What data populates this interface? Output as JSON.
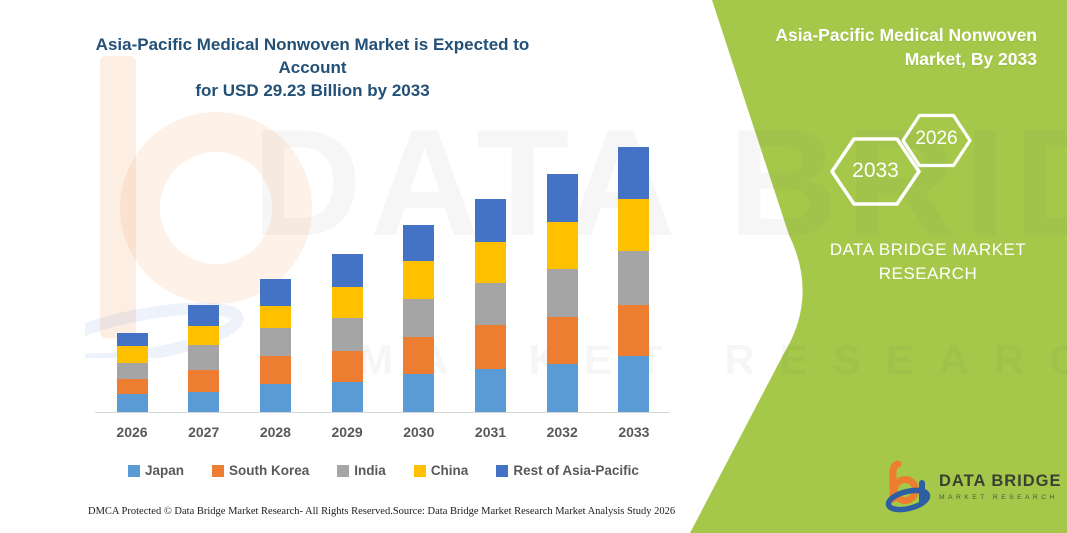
{
  "title": {
    "line1": "Asia-Pacific Medical Nonwoven Market is Expected to Account",
    "line2": "for USD 29.23 Billion by 2033"
  },
  "side_panel": {
    "bg_color": "#A5C84A",
    "heading_line1": "Asia-Pacific Medical Nonwoven",
    "heading_line2": "Market, By 2033",
    "hex_back_label": "2033",
    "hex_front_label": "2026",
    "brand_line1": "DATA BRIDGE MARKET",
    "brand_line2": "RESEARCH"
  },
  "chart_data": {
    "type": "bar",
    "stacked": true,
    "title": "Asia-Pacific Medical Nonwoven Market is Expected to Account for USD 29.23 Billion by 2033",
    "unit": "USD Billion",
    "total_2033_label": "USD 29.23 Billion",
    "categories": [
      "2026",
      "2027",
      "2028",
      "2029",
      "2030",
      "2031",
      "2032",
      "2033"
    ],
    "series": [
      {
        "name": "Japan",
        "color": "#5B9BD5",
        "values": [
          2.0,
          2.2,
          3.1,
          3.3,
          4.2,
          4.8,
          5.3,
          6.13
        ]
      },
      {
        "name": "South Korea",
        "color": "#ED7D31",
        "values": [
          1.7,
          2.4,
          3.1,
          3.4,
          4.1,
          4.8,
          5.2,
          5.7
        ]
      },
      {
        "name": "India",
        "color": "#A5A5A5",
        "values": [
          1.7,
          2.8,
          3.1,
          3.7,
          4.2,
          4.6,
          5.3,
          5.9
        ]
      },
      {
        "name": "China",
        "color": "#FFC000",
        "values": [
          1.9,
          2.1,
          2.4,
          3.4,
          4.1,
          4.6,
          5.2,
          5.8
        ]
      },
      {
        "name": "Rest of Asia-Pacific",
        "color": "#4472C4",
        "values": [
          1.4,
          2.3,
          3.0,
          3.6,
          4.0,
          4.7,
          5.3,
          5.7
        ]
      }
    ],
    "totals_estimated": [
      8.7,
      11.8,
      14.7,
      17.4,
      20.6,
      23.5,
      26.3,
      29.23
    ],
    "ylim": [
      0,
      30
    ],
    "grid": false,
    "legend_position": "bottom"
  },
  "watermark": {
    "line1": "DATA BRIDGE",
    "line2": "MARKET RESEARCH"
  },
  "footer": {
    "left": "DMCA Protected © Data Bridge Market Research-  All Rights Reserved.",
    "source": "Source: Data Bridge Market Research  Market Analysis Study 2026"
  },
  "logo": {
    "name": "DATA BRIDGE",
    "subname": "MARKET RESEARCH"
  }
}
